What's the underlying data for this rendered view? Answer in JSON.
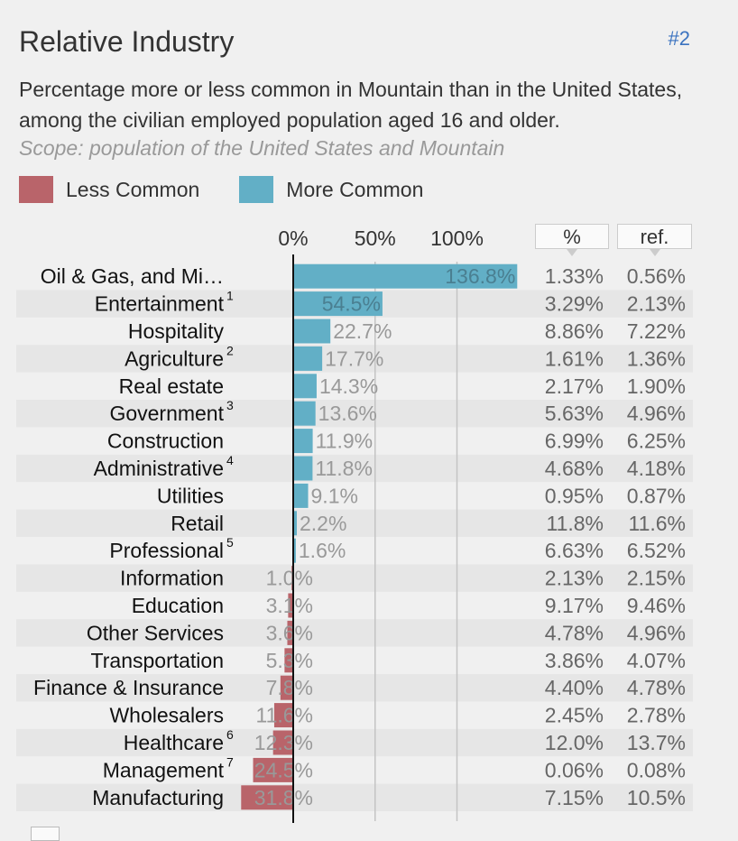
{
  "header": {
    "title": "Relative Industry",
    "rank": "#2",
    "description": "Percentage more or less common in Mountain than in the United States, among the civilian employed population aged 16 and older.",
    "scope": "Scope: population of the United States and Mountain"
  },
  "legend": {
    "less_label": "Less Common",
    "more_label": "More Common"
  },
  "columns": {
    "pct_label": "%",
    "ref_label": "ref."
  },
  "colors": {
    "less": "#b9646a",
    "more": "#62afc6",
    "background": "#f0f0f0",
    "stripe": "#e6e6e6"
  },
  "chart_data": {
    "type": "bar",
    "orientation": "horizontal",
    "x_ticks": [
      0,
      50,
      100
    ],
    "x_tick_labels": [
      "0%",
      "50%",
      "100%"
    ],
    "xlim": [
      -40,
      140
    ],
    "categories": [
      {
        "name": "Oil & Gas, and Mi…",
        "note": "",
        "value": 136.8,
        "label": "136.8%",
        "pct": "1.33%",
        "ref": "0.56%"
      },
      {
        "name": "Entertainment",
        "note": "1",
        "value": 54.5,
        "label": "54.5%",
        "pct": "3.29%",
        "ref": "2.13%"
      },
      {
        "name": "Hospitality",
        "note": "",
        "value": 22.7,
        "label": "22.7%",
        "pct": "8.86%",
        "ref": "7.22%"
      },
      {
        "name": "Agriculture",
        "note": "2",
        "value": 17.7,
        "label": "17.7%",
        "pct": "1.61%",
        "ref": "1.36%"
      },
      {
        "name": "Real estate",
        "note": "",
        "value": 14.3,
        "label": "14.3%",
        "pct": "2.17%",
        "ref": "1.90%"
      },
      {
        "name": "Government",
        "note": "3",
        "value": 13.6,
        "label": "13.6%",
        "pct": "5.63%",
        "ref": "4.96%"
      },
      {
        "name": "Construction",
        "note": "",
        "value": 11.9,
        "label": "11.9%",
        "pct": "6.99%",
        "ref": "6.25%"
      },
      {
        "name": "Administrative",
        "note": "4",
        "value": 11.8,
        "label": "11.8%",
        "pct": "4.68%",
        "ref": "4.18%"
      },
      {
        "name": "Utilities",
        "note": "",
        "value": 9.1,
        "label": "9.1%",
        "pct": "0.95%",
        "ref": "0.87%"
      },
      {
        "name": "Retail",
        "note": "",
        "value": 2.2,
        "label": "2.2%",
        "pct": "11.8%",
        "ref": "11.6%"
      },
      {
        "name": "Professional",
        "note": "5",
        "value": 1.6,
        "label": "1.6%",
        "pct": "6.63%",
        "ref": "6.52%"
      },
      {
        "name": "Information",
        "note": "",
        "value": -1.0,
        "label": "1.0%",
        "pct": "2.13%",
        "ref": "2.15%"
      },
      {
        "name": "Education",
        "note": "",
        "value": -3.1,
        "label": "3.1%",
        "pct": "9.17%",
        "ref": "9.46%"
      },
      {
        "name": "Other Services",
        "note": "",
        "value": -3.6,
        "label": "3.6%",
        "pct": "4.78%",
        "ref": "4.96%"
      },
      {
        "name": "Transportation",
        "note": "",
        "value": -5.3,
        "label": "5.3%",
        "pct": "3.86%",
        "ref": "4.07%"
      },
      {
        "name": "Finance & Insurance",
        "note": "",
        "value": -7.8,
        "label": "7.8%",
        "pct": "4.40%",
        "ref": "4.78%"
      },
      {
        "name": "Wholesalers",
        "note": "",
        "value": -11.6,
        "label": "11.6%",
        "pct": "2.45%",
        "ref": "2.78%"
      },
      {
        "name": "Healthcare",
        "note": "6",
        "value": -12.3,
        "label": "12.3%",
        "pct": "12.0%",
        "ref": "13.7%"
      },
      {
        "name": "Management",
        "note": "7",
        "value": -24.5,
        "label": "24.5%",
        "pct": "0.06%",
        "ref": "0.08%"
      },
      {
        "name": "Manufacturing",
        "note": "",
        "value": -31.8,
        "label": "31.8%",
        "pct": "7.15%",
        "ref": "10.5%"
      }
    ]
  }
}
